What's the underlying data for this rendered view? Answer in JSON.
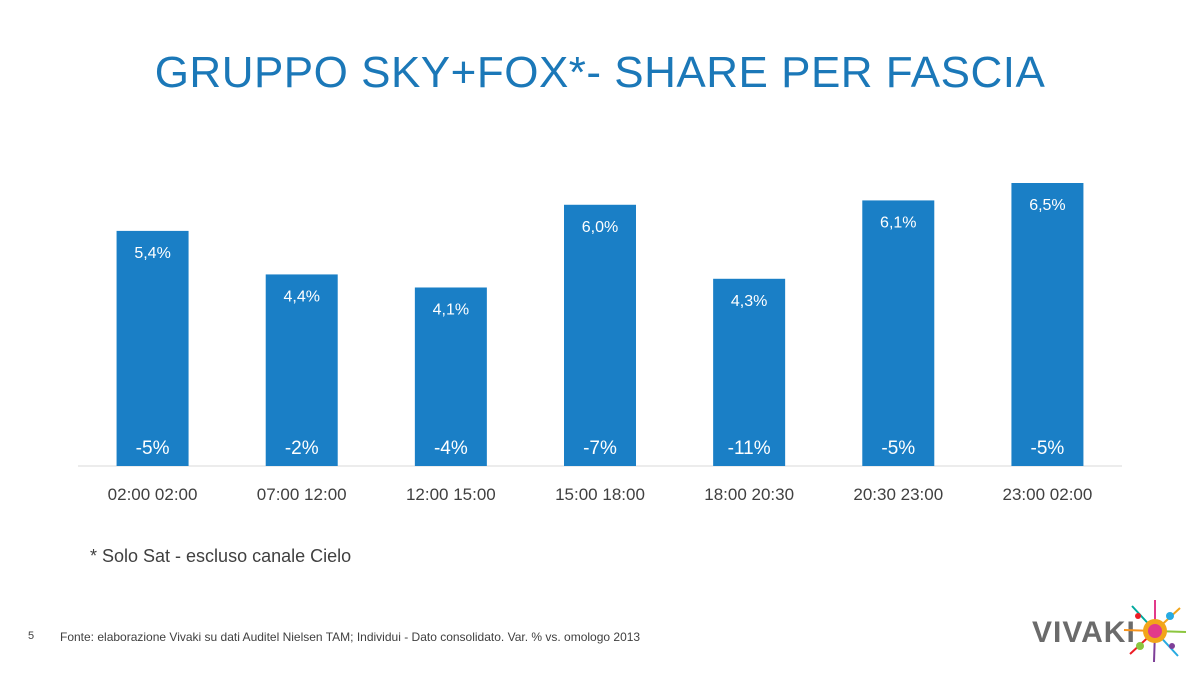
{
  "title": "GRUPPO SKY+FOX*- SHARE PER FASCIA",
  "footnote": "* Solo Sat - escluso canale Cielo",
  "page_number": "5",
  "source": "Fonte: elaborazione Vivaki su dati Auditel Nielsen TAM; Individui - Dato consolidato. Var. % vs. omologo 2013",
  "brand": "VIVAKI",
  "colors": {
    "title": "#1b78b8",
    "bar": "#1a7fc6"
  },
  "chart_data": {
    "type": "bar",
    "title": "GRUPPO SKY+FOX*- SHARE PER FASCIA",
    "xlabel": "",
    "ylabel": "",
    "ylim": [
      0,
      7
    ],
    "categories": [
      "02:00 02:00",
      "07:00 12:00",
      "12:00 15:00",
      "15:00 18:00",
      "18:00 20:30",
      "20:30 23:00",
      "23:00 02:00"
    ],
    "values": [
      5.4,
      4.4,
      4.1,
      6.0,
      4.3,
      6.1,
      6.5
    ],
    "value_labels": [
      "5,4%",
      "4,4%",
      "4,1%",
      "6,0%",
      "4,3%",
      "6,1%",
      "6,5%"
    ],
    "variation_labels": [
      "-5%",
      "-2%",
      "-4%",
      "-7%",
      "-11%",
      "-5%",
      "-5%"
    ],
    "grid": false
  }
}
